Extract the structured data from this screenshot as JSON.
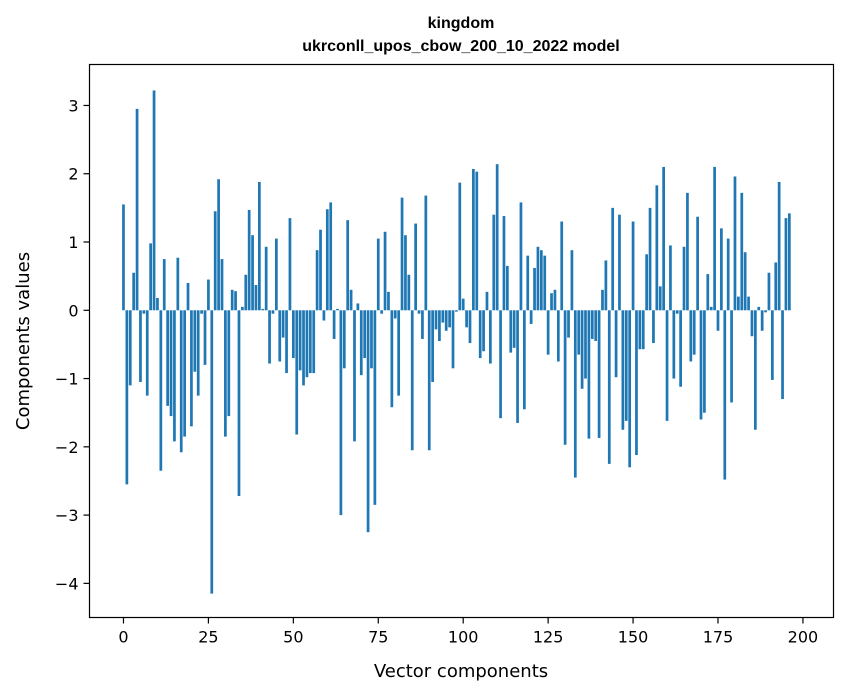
{
  "chart_data": {
    "type": "bar",
    "title_line1": "kingdom",
    "title_line2": "ukrconll_upos_cbow_200_10_2022 model",
    "xlabel": "Vector components",
    "ylabel": "Components values",
    "xlim": [
      -10,
      209
    ],
    "ylim": [
      -4.5,
      3.6
    ],
    "xticks": [
      0,
      25,
      50,
      75,
      100,
      125,
      150,
      175,
      200
    ],
    "yticks": [
      3,
      2,
      1,
      0,
      -1,
      -2,
      -3,
      -4
    ],
    "xtick_labels": [
      "0",
      "25",
      "50",
      "75",
      "100",
      "125",
      "150",
      "175",
      "200"
    ],
    "ytick_labels": [
      "3",
      "2",
      "1",
      "0",
      "−1",
      "−2",
      "−3",
      "−4"
    ],
    "bar_color": "#1f77b4",
    "grid": false,
    "values": [
      1.55,
      -2.55,
      -1.1,
      0.55,
      2.95,
      -1.05,
      -0.05,
      -1.25,
      0.98,
      3.22,
      0.18,
      -2.35,
      0.75,
      -1.4,
      -1.55,
      -1.92,
      0.77,
      -2.08,
      -1.85,
      0.4,
      -1.7,
      -0.9,
      -1.25,
      -0.05,
      -0.8,
      0.45,
      -4.15,
      1.45,
      1.92,
      0.75,
      -1.85,
      -1.55,
      0.3,
      0.28,
      -2.72,
      0.05,
      0.52,
      1.47,
      1.1,
      0.37,
      1.88,
      0.02,
      0.93,
      -0.78,
      -0.05,
      1.05,
      -0.75,
      -0.4,
      -0.92,
      1.35,
      -0.7,
      -1.82,
      -0.88,
      -1.1,
      -0.98,
      -0.92,
      -0.92,
      0.88,
      1.18,
      -0.15,
      1.48,
      1.58,
      -0.42,
      0.02,
      -3.0,
      -0.85,
      1.32,
      0.3,
      -1.92,
      0.1,
      -0.95,
      -0.7,
      -3.25,
      -0.85,
      -2.85,
      1.05,
      -0.05,
      1.15,
      0.27,
      -1.42,
      -0.12,
      -1.25,
      1.65,
      1.1,
      0.52,
      -2.05,
      1.27,
      -0.05,
      -0.42,
      1.68,
      -2.05,
      -1.05,
      -0.28,
      -0.45,
      -0.18,
      -0.3,
      -0.25,
      -0.85,
      -0.02,
      1.87,
      0.17,
      -0.25,
      -0.48,
      2.07,
      2.03,
      -0.7,
      -0.6,
      0.27,
      -0.78,
      1.4,
      2.14,
      -1.58,
      1.38,
      0.65,
      -0.62,
      -0.55,
      -1.65,
      1.58,
      -1.45,
      0.8,
      -0.2,
      0.62,
      0.93,
      0.88,
      0.8,
      -0.65,
      0.25,
      0.3,
      -0.75,
      1.3,
      -1.97,
      -0.4,
      0.88,
      -2.45,
      -0.65,
      -1.15,
      -1.0,
      -1.88,
      -0.42,
      -0.45,
      -1.87,
      0.3,
      0.73,
      -2.25,
      1.5,
      -0.98,
      1.4,
      -1.75,
      -1.62,
      -2.3,
      1.3,
      -2.12,
      -0.57,
      -0.57,
      0.82,
      1.5,
      -0.48,
      1.83,
      0.35,
      2.1,
      -1.62,
      0.95,
      -1.0,
      -0.05,
      -1.12,
      0.93,
      1.72,
      -0.75,
      -0.65,
      1.37,
      -1.6,
      -1.5,
      0.53,
      0.05,
      2.1,
      -0.3,
      1.2,
      -2.48,
      1.05,
      -1.35,
      1.96,
      0.2,
      1.72,
      0.85,
      0.2,
      -0.38,
      -1.75,
      0.05,
      -0.3,
      -0.03,
      0.55,
      -1.02,
      0.7,
      1.88,
      -1.3,
      1.35,
      1.42
    ]
  }
}
